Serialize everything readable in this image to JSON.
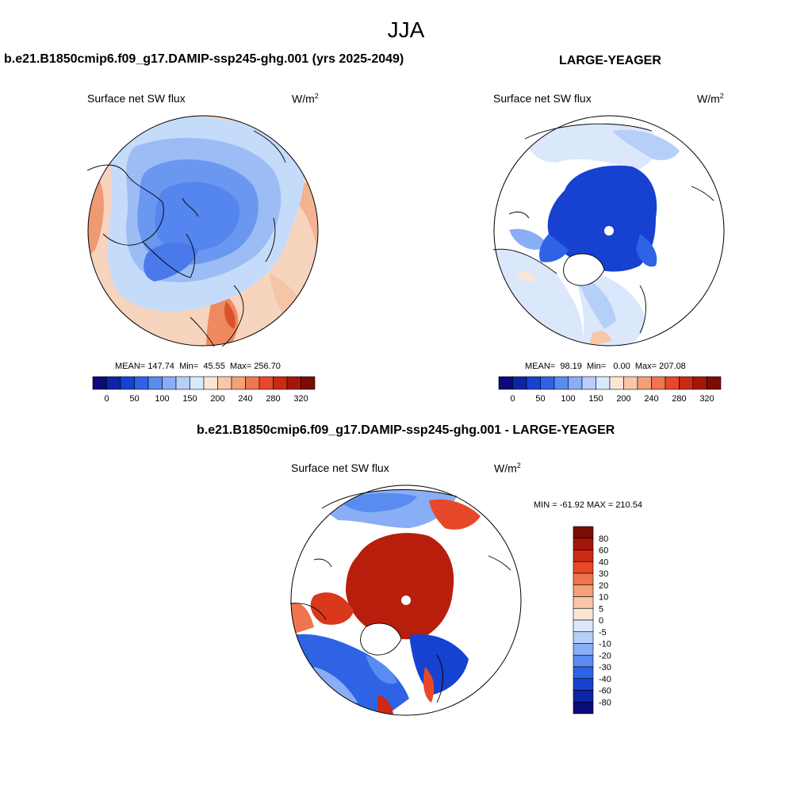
{
  "page_title": "JJA",
  "panels": [
    {
      "title": "b.e21.B1850cmip6.f09_g17.DAMIP-ssp245-ghg.001 (yrs 2025-2049)",
      "variable": "Surface net SW flux",
      "units_base": "W/m",
      "units_exp": "2",
      "stats": {
        "mean_label": "MEAN=",
        "mean": "147.74",
        "min_label": "Min=",
        "min": "45.55",
        "max_label": "Max=",
        "max": "256.70"
      }
    },
    {
      "title": "LARGE-YEAGER",
      "variable": "Surface net SW flux",
      "units_base": "W/m",
      "units_exp": "2",
      "stats": {
        "mean_label": "MEAN=",
        "mean": "98.19",
        "min_label": "Min=",
        "min": "0.00",
        "max_label": "Max=",
        "max": "207.08"
      }
    },
    {
      "title": "b.e21.B1850cmip6.f09_g17.DAMIP-ssp245-ghg.001 - LARGE-YEAGER",
      "variable": "Surface net SW flux",
      "units_base": "W/m",
      "units_exp": "2",
      "stats_text": "MIN = -61.92 MAX = 210.54"
    }
  ],
  "colorbar_abs": {
    "colors": [
      "#0a0a78",
      "#0d24a6",
      "#1741d0",
      "#2f63e6",
      "#5a8bf0",
      "#89aef5",
      "#b6cff9",
      "#dbe8fc",
      "#fbe6d6",
      "#f8c7a8",
      "#f4a07a",
      "#ef754e",
      "#e8482a",
      "#cc2a12",
      "#a3170a",
      "#7b0c06"
    ],
    "ticks": [
      "0",
      "50",
      "100",
      "150",
      "200",
      "240",
      "280",
      "320"
    ]
  },
  "colorbar_diff": {
    "colors": [
      "#0a0a78",
      "#0d24a6",
      "#1741d0",
      "#2f63e6",
      "#5a8bf0",
      "#89aef5",
      "#b6cff9",
      "#dbe8fc",
      "#fbe6d6",
      "#f8c7a8",
      "#f4a07a",
      "#ef754e",
      "#e8482a",
      "#cc2a12",
      "#a3170a",
      "#7b0c06"
    ],
    "ticks": [
      "80",
      "60",
      "40",
      "30",
      "20",
      "10",
      "5",
      "0",
      "-5",
      "-10",
      "-20",
      "-30",
      "-40",
      "-60",
      "-80"
    ]
  },
  "chart_data": [
    {
      "type": "heatmap",
      "title": "b.e21.B1850cmip6.f09_g17.DAMIP-ssp245-ghg.001 (yrs 2025-2049)",
      "subtitle": "Surface net SW flux (W/m2), JJA",
      "projection": "north polar stereographic",
      "mean": 147.74,
      "min": 45.55,
      "max": 256.7,
      "levels": [
        0,
        25,
        50,
        75,
        100,
        125,
        150,
        175,
        200,
        220,
        240,
        260,
        280,
        300,
        320
      ]
    },
    {
      "type": "heatmap",
      "title": "LARGE-YEAGER",
      "subtitle": "Surface net SW flux (W/m2), JJA",
      "projection": "north polar stereographic",
      "mean": 98.19,
      "min": 0.0,
      "max": 207.08,
      "levels": [
        0,
        25,
        50,
        75,
        100,
        125,
        150,
        175,
        200,
        220,
        240,
        260,
        280,
        300,
        320
      ]
    },
    {
      "type": "heatmap",
      "title": "b.e21.B1850cmip6.f09_g17.DAMIP-ssp245-ghg.001 - LARGE-YEAGER",
      "subtitle": "Surface net SW flux difference (W/m2), JJA",
      "projection": "north polar stereographic",
      "min": -61.92,
      "max": 210.54,
      "levels": [
        -80,
        -60,
        -40,
        -30,
        -20,
        -10,
        -5,
        0,
        5,
        10,
        20,
        30,
        40,
        60,
        80
      ]
    }
  ]
}
